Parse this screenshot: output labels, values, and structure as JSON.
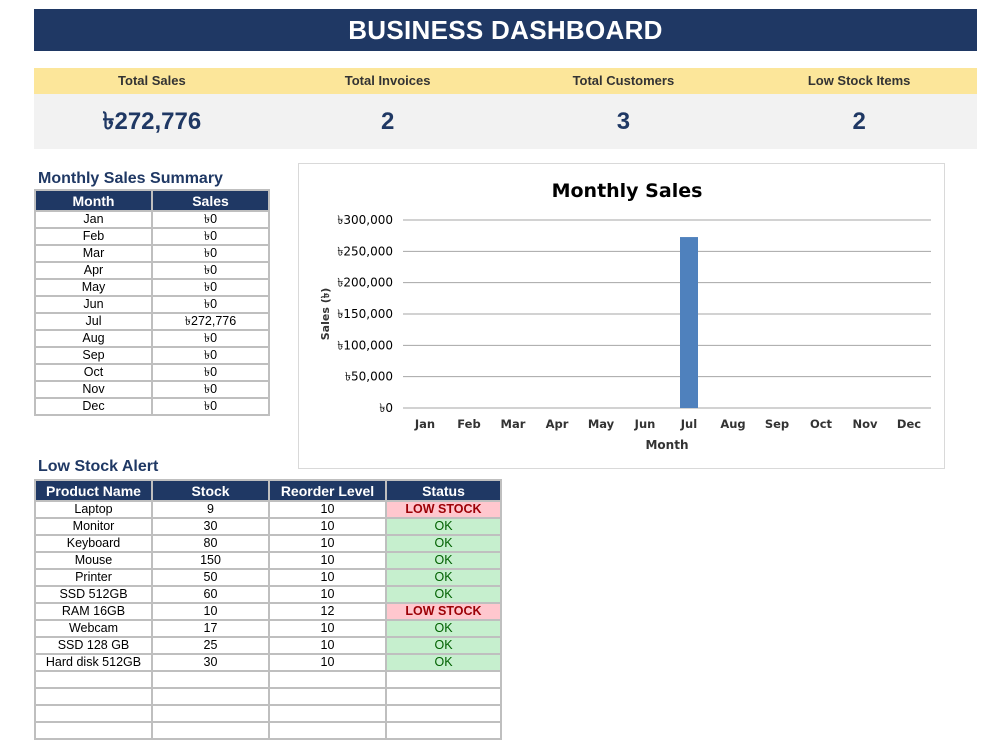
{
  "title": "BUSINESS DASHBOARD",
  "kpis": [
    {
      "label": "Total Sales",
      "value": "৳272,776"
    },
    {
      "label": "Total Invoices",
      "value": "2"
    },
    {
      "label": "Total Customers",
      "value": "3"
    },
    {
      "label": "Low Stock Items",
      "value": "2"
    }
  ],
  "monthly_summary": {
    "title": "Monthly Sales Summary",
    "headers": [
      "Month",
      "Sales"
    ],
    "rows": [
      [
        "Jan",
        "৳0"
      ],
      [
        "Feb",
        "৳0"
      ],
      [
        "Mar",
        "৳0"
      ],
      [
        "Apr",
        "৳0"
      ],
      [
        "May",
        "৳0"
      ],
      [
        "Jun",
        "৳0"
      ],
      [
        "Jul",
        "৳272,776"
      ],
      [
        "Aug",
        "৳0"
      ],
      [
        "Sep",
        "৳0"
      ],
      [
        "Oct",
        "৳0"
      ],
      [
        "Nov",
        "৳0"
      ],
      [
        "Dec",
        "৳0"
      ]
    ]
  },
  "chart_data": {
    "type": "bar",
    "title": "Monthly Sales",
    "xlabel": "Month",
    "ylabel": "Sales (৳)",
    "categories": [
      "Jan",
      "Feb",
      "Mar",
      "Apr",
      "May",
      "Jun",
      "Jul",
      "Aug",
      "Sep",
      "Oct",
      "Nov",
      "Dec"
    ],
    "values": [
      0,
      0,
      0,
      0,
      0,
      0,
      272776,
      0,
      0,
      0,
      0,
      0
    ],
    "ylim": [
      0,
      300000
    ],
    "yticks": [
      "৳0",
      "৳50,000",
      "৳100,000",
      "৳150,000",
      "৳200,000",
      "৳250,000",
      "৳300,000"
    ],
    "grid": true,
    "bar_color": "#4f81bd"
  },
  "low_stock": {
    "title": "Low Stock Alert",
    "headers": [
      "Product Name",
      "Stock",
      "Reorder Level",
      "Status"
    ],
    "rows": [
      {
        "name": "Laptop",
        "stock": "9",
        "reorder": "10",
        "status": "LOW STOCK",
        "low": true
      },
      {
        "name": "Monitor",
        "stock": "30",
        "reorder": "10",
        "status": "OK",
        "low": false
      },
      {
        "name": "Keyboard",
        "stock": "80",
        "reorder": "10",
        "status": "OK",
        "low": false
      },
      {
        "name": "Mouse",
        "stock": "150",
        "reorder": "10",
        "status": "OK",
        "low": false
      },
      {
        "name": "Printer",
        "stock": "50",
        "reorder": "10",
        "status": "OK",
        "low": false
      },
      {
        "name": "SSD 512GB",
        "stock": "60",
        "reorder": "10",
        "status": "OK",
        "low": false
      },
      {
        "name": "RAM 16GB",
        "stock": "10",
        "reorder": "12",
        "status": "LOW STOCK",
        "low": true
      },
      {
        "name": "Webcam",
        "stock": "17",
        "reorder": "10",
        "status": "OK",
        "low": false
      },
      {
        "name": "SSD 128 GB",
        "stock": "25",
        "reorder": "10",
        "status": "OK",
        "low": false
      },
      {
        "name": "Hard disk 512GB",
        "stock": "30",
        "reorder": "10",
        "status": "OK",
        "low": false
      }
    ],
    "empty_rows": 4
  },
  "colors": {
    "header": "#1f3864",
    "kpi_band": "#fce69a",
    "low": "#ffc7ce",
    "ok": "#c6efce"
  }
}
